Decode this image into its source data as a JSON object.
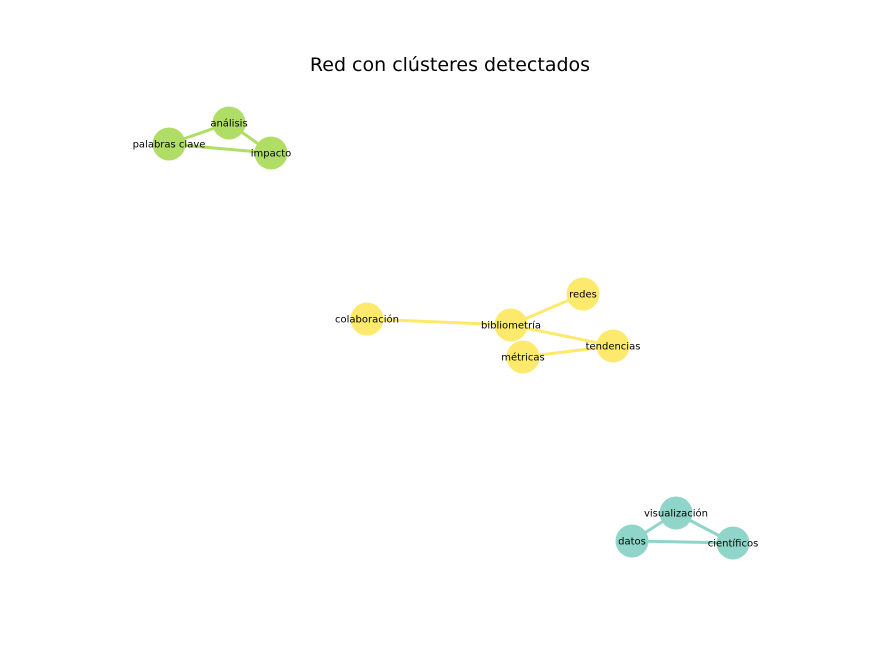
{
  "title": "Red con clústeres detectados",
  "clusters": [
    {
      "name": "",
      "color": "#b0dd66"
    },
    {
      "name": "",
      "color": "#fde96b"
    },
    {
      "name": "",
      "color": "#8fd5c9"
    }
  ],
  "nodes": [
    {
      "id": "analisis",
      "label": "análisis",
      "cluster": 0
    },
    {
      "id": "palabras",
      "label": "palabras clave",
      "cluster": 0
    },
    {
      "id": "impacto",
      "label": "impacto",
      "cluster": 0
    },
    {
      "id": "redes",
      "label": "redes",
      "cluster": 1
    },
    {
      "id": "colaboracion",
      "label": "colaboración",
      "cluster": 1
    },
    {
      "id": "bibliometria",
      "label": "bibliometría",
      "cluster": 1
    },
    {
      "id": "tendencias",
      "label": "tendencias",
      "cluster": 1
    },
    {
      "id": "metricas",
      "label": "métricas",
      "cluster": 1
    },
    {
      "id": "visualizacion",
      "label": "visualización",
      "cluster": 2
    },
    {
      "id": "datos",
      "label": "datos",
      "cluster": 2
    },
    {
      "id": "cientificos",
      "label": "científicos",
      "cluster": 2
    }
  ],
  "edges": [
    {
      "source": "analisis",
      "target": "palabras"
    },
    {
      "source": "analisis",
      "target": "impacto"
    },
    {
      "source": "palabras",
      "target": "impacto"
    },
    {
      "source": "colaboracion",
      "target": "bibliometria"
    },
    {
      "source": "bibliometria",
      "target": "redes"
    },
    {
      "source": "bibliometria",
      "target": "tendencias"
    },
    {
      "source": "metricas",
      "target": "tendencias"
    },
    {
      "source": "visualizacion",
      "target": "datos"
    },
    {
      "source": "visualizacion",
      "target": "cientificos"
    },
    {
      "source": "datos",
      "target": "cientificos"
    }
  ]
}
